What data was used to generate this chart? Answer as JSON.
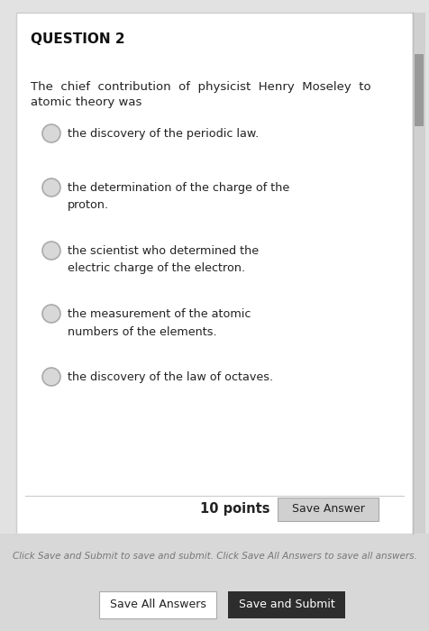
{
  "title": "QUESTION 2",
  "question_line1": "The  chief  contribution  of  physicist  Henry  Moseley  to",
  "question_line2": "atomic theory was",
  "options": [
    "the discovery of the periodic law.",
    "the determination of the charge of the\nproton.",
    "the scientist who determined the\nelectric charge of the electron.",
    "the measurement of the atomic\nnumbers of the elements.",
    "the discovery of the law of octaves."
  ],
  "points_text": "10 points",
  "save_answer_text": "Save Answer",
  "footer_text": "Click Save and Submit to save and submit. Click Save All Answers to save all answers.",
  "save_all_text": "Save All Answers",
  "save_submit_text": "Save and Submit",
  "bg_color": "#e2e2e2",
  "card_color": "#ffffff",
  "card_border": "#cccccc",
  "radio_fill": "#d8d8d8",
  "radio_border": "#aaaaaa",
  "text_color": "#222222",
  "title_color": "#111111",
  "footer_bg": "#d8d8d8",
  "save_answer_bg": "#d0d0d0",
  "save_answer_border": "#aaaaaa",
  "save_submit_bg": "#2d2d2d",
  "save_submit_text_color": "#ffffff",
  "footer_text_color": "#777777",
  "scrollbar_color": "#bbbbbb"
}
